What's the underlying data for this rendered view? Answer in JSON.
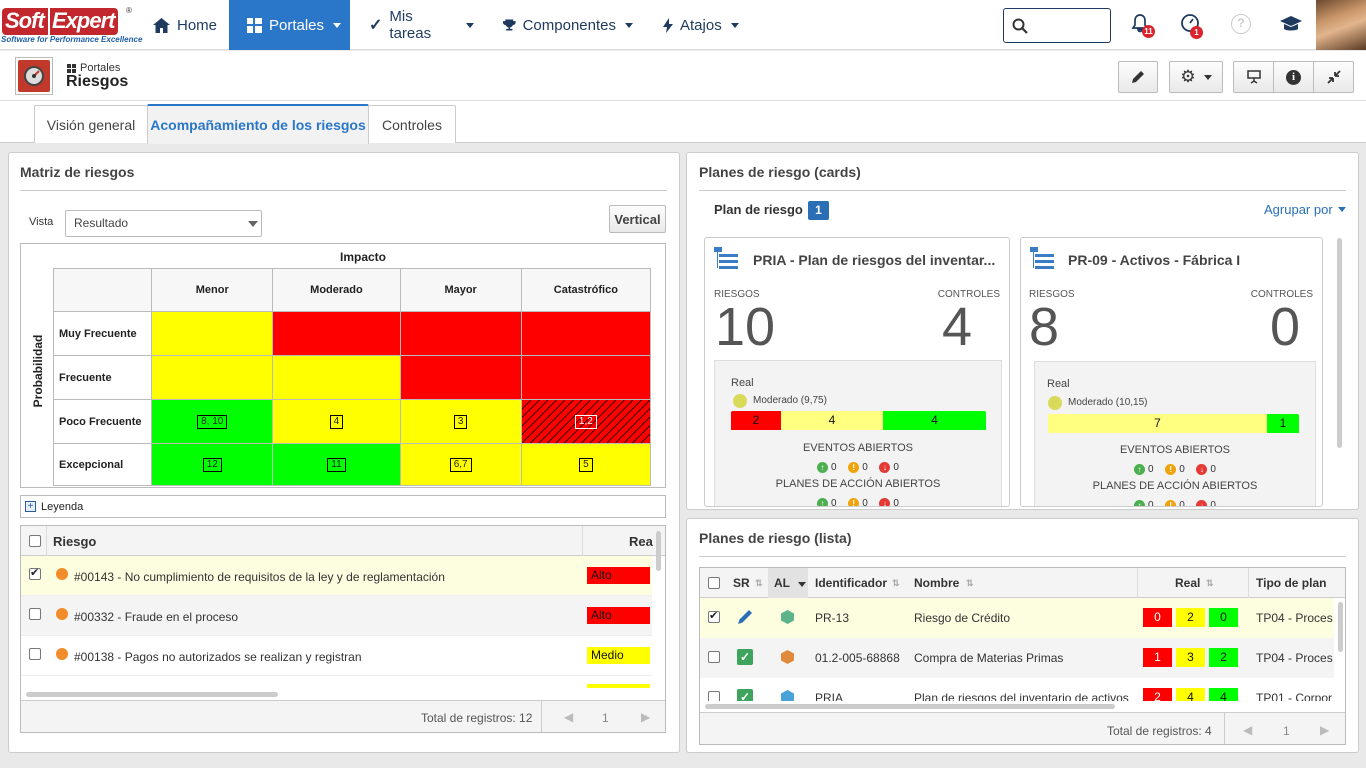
{
  "brand": {
    "logo_part1": "Soft",
    "logo_part2": "Expert",
    "registered": "®",
    "tagline": "Software for Performance Excellence"
  },
  "nav": {
    "home": "Home",
    "portales": "Portales",
    "mis_tareas": "Mis tareas",
    "componentes": "Componentes",
    "atajos": "Atajos",
    "notifications_count": "11",
    "alerts_count": "1"
  },
  "header": {
    "breadcrumb": "Portales",
    "title": "Riesgos"
  },
  "tabs": [
    "Visión general",
    "Acompañamiento de los riesgos",
    "Controles"
  ],
  "matrix": {
    "title": "Matriz de riesgos",
    "vista_label": "Vista",
    "vista_value": "Resultado",
    "vertical_button": "Vertical",
    "impacto": "Impacto",
    "probabilidad": "Probabilidad",
    "cols": [
      "Menor",
      "Moderado",
      "Mayor",
      "Catastrófico"
    ],
    "rows": [
      {
        "label": "Muy Frecuente",
        "cells": [
          {
            "c": "y",
            "n": ""
          },
          {
            "c": "r",
            "n": ""
          },
          {
            "c": "r",
            "n": ""
          },
          {
            "c": "r",
            "n": ""
          }
        ]
      },
      {
        "label": "Frecuente",
        "cells": [
          {
            "c": "y",
            "n": ""
          },
          {
            "c": "y",
            "n": ""
          },
          {
            "c": "r",
            "n": ""
          },
          {
            "c": "r",
            "n": ""
          }
        ]
      },
      {
        "label": "Poco Frecuente",
        "cells": [
          {
            "c": "g",
            "n": "8, 10"
          },
          {
            "c": "y",
            "n": "4"
          },
          {
            "c": "y",
            "n": "3"
          },
          {
            "c": "h",
            "n": "1,2"
          }
        ]
      },
      {
        "label": "Excepcional",
        "cells": [
          {
            "c": "g",
            "n": "12"
          },
          {
            "c": "g",
            "n": "11"
          },
          {
            "c": "y",
            "n": "6,7"
          },
          {
            "c": "y",
            "n": "5"
          }
        ]
      }
    ],
    "legend": "Leyenda"
  },
  "risk_list": {
    "col_riesgo": "Riesgo",
    "col_real": "Rea",
    "rows": [
      {
        "checked": true,
        "text": "#00143 - No cumplimiento de requisitos de la ley y de reglamentación",
        "real": "Alto",
        "color": "#ff0000"
      },
      {
        "checked": false,
        "text": "#00332 - Fraude en el proceso",
        "real": "Alto",
        "color": "#ff0000"
      },
      {
        "checked": false,
        "text": "#00138 - Pagos no autorizados se realizan y registran",
        "real": "Medio",
        "color": "#ffff00"
      }
    ],
    "total": "Total de registros: 12",
    "page": "1"
  },
  "cards_panel": {
    "title": "Planes de riesgo (cards)",
    "subtitle": "Plan de riesgo",
    "count": "1",
    "group_by": "Agrupar por",
    "cards": [
      {
        "name": "PRIA - Plan de riesgos del inventar...",
        "riesgos_label": "RIESGOS",
        "riesgos": "10",
        "controles_label": "CONTROLES",
        "controles": "4",
        "real_label": "Real",
        "level": "Moderado (9,75)",
        "bar": [
          {
            "v": "2",
            "c": "#ff0000",
            "w": 50
          },
          {
            "v": "4",
            "c": "#ffff80",
            "w": 102
          },
          {
            "v": "4",
            "c": "#00ff00",
            "w": 102
          }
        ],
        "eventos_label": "EVENTOS ABIERTOS",
        "eventos": [
          "0",
          "0",
          "0"
        ],
        "planes_label": "PLANES DE ACCIÓN ABIERTOS",
        "planes": [
          "0",
          "0",
          "0"
        ]
      },
      {
        "name": "PR-09 - Activos - Fábrica I",
        "riesgos_label": "RIESGOS",
        "riesgos": "8",
        "controles_label": "CONTROLES",
        "controles": "0",
        "real_label": "Real",
        "level": "Moderado (10,15)",
        "bar": [
          {
            "v": "7",
            "c": "#ffff80",
            "w": 218
          },
          {
            "v": "1",
            "c": "#00ff00",
            "w": 32
          }
        ],
        "eventos_label": "EVENTOS ABIERTOS",
        "eventos": [
          "0",
          "0",
          "0"
        ],
        "planes_label": "PLANES DE ACCIÓN ABIERTOS",
        "planes": [
          "0",
          "0",
          "0"
        ]
      }
    ]
  },
  "list_panel": {
    "title": "Planes de riesgo (lista)",
    "cols": {
      "sr": "SR",
      "al": "AL",
      "id": "Identificador",
      "nombre": "Nombre",
      "real": "Real",
      "tipo": "Tipo de plan"
    },
    "rows": [
      {
        "checked": true,
        "id": "PR-13",
        "nombre": "Riesgo de Crédito",
        "real": [
          "0",
          "2",
          "0"
        ],
        "tipo": "TP04 - Proces"
      },
      {
        "checked": false,
        "id": "01.2-005-68868",
        "nombre": "Compra de Materias Primas",
        "real": [
          "1",
          "3",
          "2"
        ],
        "tipo": "TP04 - Proces"
      },
      {
        "checked": false,
        "id": "PRIA",
        "nombre": "Plan de riesgos del inventario de activos",
        "real": [
          "2",
          "4",
          "4"
        ],
        "tipo": "TP01 - Corpor"
      }
    ],
    "total": "Total de registros: 4",
    "page": "1"
  }
}
